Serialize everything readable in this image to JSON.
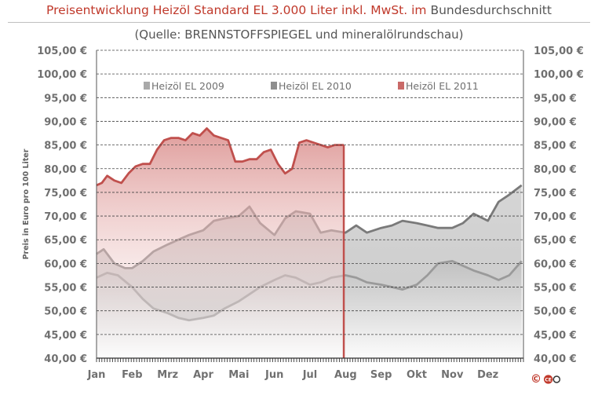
{
  "title": {
    "main": "Preisentwicklung Heizöl Standard EL 3.000 Liter inkl. MwSt. im",
    "tail": "Bundesdurchschnitt"
  },
  "subtitle": "(Quelle: BRENNSTOFFSPIEGEL  und mineralölrundschau)",
  "copyright_symbol": "©",
  "logo_text": "CEO",
  "colors": {
    "s2009": "#9a9a9a",
    "s2010": "#7a7a7a",
    "s2011": "#c0504d"
  },
  "chart_data": {
    "type": "area",
    "ylabel": "Preis in Euro pro 100 Liter",
    "ylim": [
      40,
      105
    ],
    "y_ticks": [
      "40,00 €",
      "45,00 €",
      "50,00 €",
      "55,00 €",
      "60,00 €",
      "65,00 €",
      "70,00 €",
      "75,00 €",
      "80,00 €",
      "85,00 €",
      "90,00 €",
      "95,00 €",
      "100,00 €",
      "105,00 €"
    ],
    "categories": [
      "Jan",
      "Feb",
      "Mrz",
      "Apr",
      "Mai",
      "Jun",
      "Jul",
      "Aug",
      "Sep",
      "Okt",
      "Nov",
      "Dez"
    ],
    "grid": true,
    "legend_position": "top",
    "series": [
      {
        "name": "Heizöl EL 2009",
        "x": [
          1,
          1.3,
          1.6,
          2,
          2.3,
          2.6,
          3,
          3.3,
          3.6,
          4,
          4.3,
          4.6,
          5,
          5.3,
          5.6,
          6,
          6.3,
          6.6,
          7,
          7.3,
          7.6,
          8,
          8.3,
          8.6,
          9,
          9.3,
          9.6,
          10,
          10.3,
          10.6,
          11,
          11.3,
          11.6,
          12,
          12.3,
          12.6,
          12.95
        ],
        "y": [
          57,
          58,
          57.5,
          55,
          52.5,
          50.5,
          49.5,
          48.5,
          48,
          48.5,
          49,
          50.5,
          52,
          53.5,
          55,
          56.5,
          57.5,
          57,
          55.5,
          56,
          57,
          57.5,
          57,
          56,
          55.5,
          55,
          54.5,
          55.5,
          57.5,
          60,
          60.5,
          59.5,
          58.5,
          57.5,
          56.5,
          57.5,
          60.5
        ]
      },
      {
        "name": "Heizöl EL 2010",
        "x": [
          1,
          1.2,
          1.5,
          1.8,
          2,
          2.3,
          2.6,
          3,
          3.3,
          3.6,
          4,
          4.3,
          4.6,
          5,
          5.3,
          5.6,
          6,
          6.3,
          6.6,
          7,
          7.3,
          7.6,
          8,
          8.3,
          8.6,
          9,
          9.3,
          9.6,
          10,
          10.3,
          10.6,
          11,
          11.3,
          11.6,
          12,
          12.3,
          12.6,
          12.95
        ],
        "y": [
          62,
          63,
          60,
          59,
          59,
          60.5,
          62.5,
          64,
          65,
          66,
          67,
          69,
          69.5,
          70,
          72,
          68.5,
          66,
          69.5,
          71,
          70.5,
          66.5,
          67,
          66.5,
          68,
          66.5,
          67.5,
          68,
          69,
          68.5,
          68,
          67.5,
          67.5,
          68.5,
          70.5,
          69,
          73,
          74.5,
          76.5
        ]
      },
      {
        "name": "Heizöl EL 2011",
        "x": [
          1,
          1.15,
          1.3,
          1.5,
          1.7,
          1.9,
          2.1,
          2.3,
          2.5,
          2.7,
          2.9,
          3.1,
          3.3,
          3.5,
          3.7,
          3.9,
          4.1,
          4.3,
          4.5,
          4.7,
          4.9,
          5.1,
          5.3,
          5.5,
          5.7,
          5.9,
          6.1,
          6.3,
          6.5,
          6.7,
          6.9,
          7.1,
          7.3,
          7.5,
          7.7,
          7.95
        ],
        "y": [
          76.5,
          77,
          78.5,
          77.5,
          77,
          79,
          80.5,
          81,
          81,
          84,
          86,
          86.5,
          86.5,
          86,
          87.5,
          87,
          88.5,
          87,
          86.5,
          86,
          81.5,
          81.5,
          82,
          82,
          83.5,
          84,
          81,
          79,
          80,
          85.5,
          86,
          85.5,
          85,
          84.5,
          85,
          85
        ]
      }
    ]
  }
}
